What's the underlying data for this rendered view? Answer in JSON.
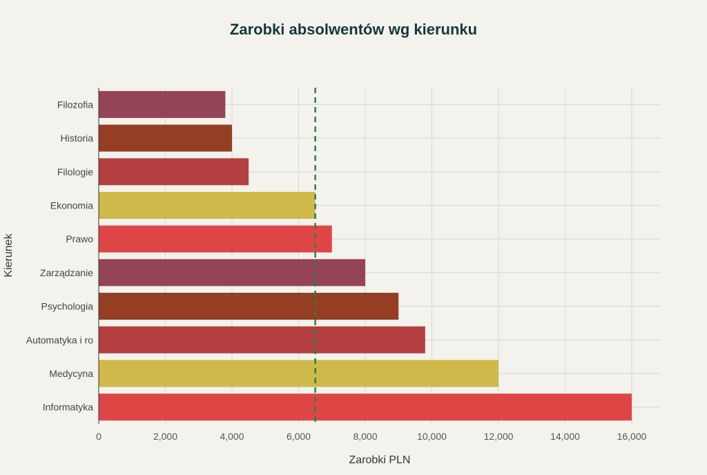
{
  "chart_data": {
    "type": "bar",
    "orientation": "horizontal",
    "title": "Zarobki absolwentów wg kierunku",
    "xlabel": "Zarobki PLN",
    "ylabel": "Kierunek",
    "xlim": [
      0,
      16800
    ],
    "xticks": [
      0,
      2000,
      4000,
      6000,
      8000,
      10000,
      12000,
      14000,
      16000
    ],
    "xtick_labels": [
      "0",
      "2,000",
      "4,000",
      "6,000",
      "8,000",
      "10,000",
      "12,000",
      "14,000",
      "16,000"
    ],
    "categories": [
      "Filozofia",
      "Historia",
      "Filologie",
      "Ekonomia",
      "Prawo",
      "Zarządzanie",
      "Psychologia",
      "Automatyka i ro",
      "Medycyna",
      "Informatyka"
    ],
    "values": [
      3800,
      4000,
      4500,
      6500,
      7000,
      8000,
      9000,
      9800,
      12000,
      16000
    ],
    "colors": [
      "#944454",
      "#943f24",
      "#b33f40",
      "#cfb94a",
      "#de4646",
      "#944454",
      "#943f24",
      "#b33f40",
      "#cfb94a",
      "#de4646"
    ],
    "reference_line": {
      "x": 6500,
      "style": "dashed",
      "color": "#2e7d4a"
    },
    "grid": true,
    "legend": "none"
  }
}
